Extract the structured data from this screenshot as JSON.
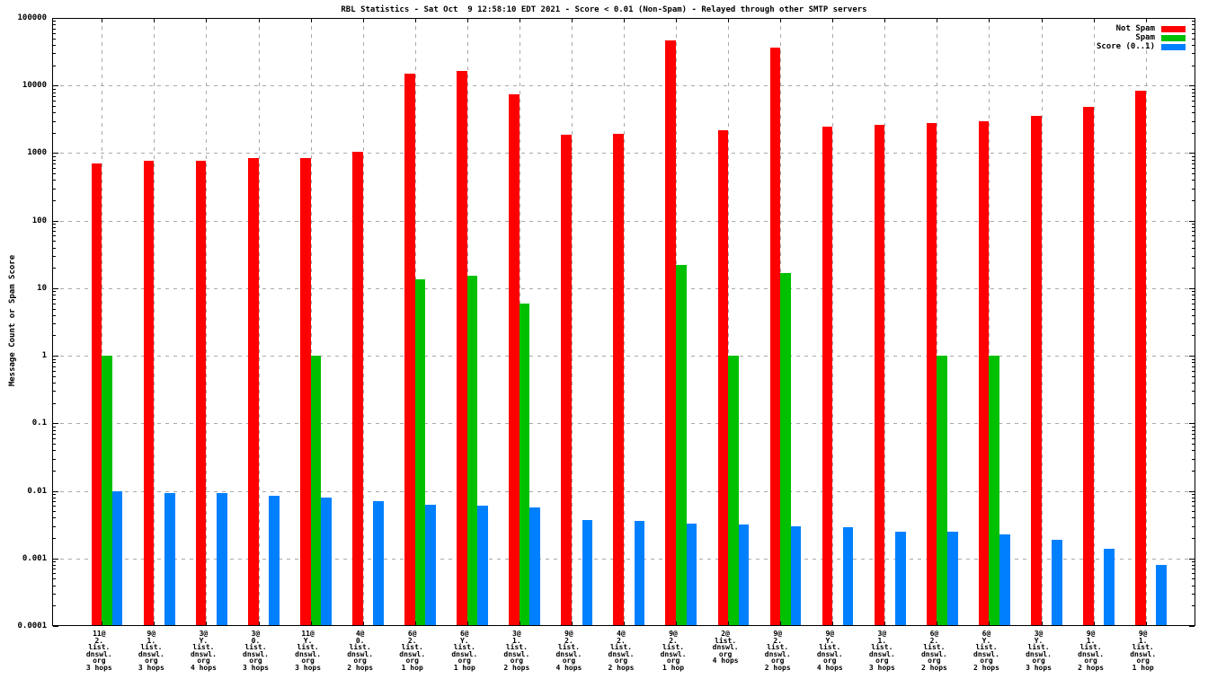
{
  "title": "RBL Statistics - Sat Oct  9 12:58:10 EDT 2021 - Score < 0.01 (Non-Spam) - Relayed through other SMTP servers",
  "ylabel": "Message Count or Spam Score",
  "colors": {
    "not_spam": "#ff0000",
    "spam": "#00c000",
    "score": "#0080ff",
    "grid": "#a8a8a8",
    "axis": "#000000",
    "background": "#ffffff"
  },
  "legend": {
    "position": "top-right",
    "items": [
      {
        "label": "Not Spam",
        "color": "#ff0000"
      },
      {
        "label": "Spam",
        "color": "#00c000"
      },
      {
        "label": "Score (0..1)",
        "color": "#0080ff"
      }
    ]
  },
  "chart_data": {
    "type": "bar",
    "title": "RBL Statistics - Sat Oct  9 12:58:10 EDT 2021 - Score < 0.01 (Non-Spam) - Relayed through other SMTP servers",
    "xlabel": "",
    "ylabel": "Message Count or Spam Score",
    "yscale": "log",
    "ylim": [
      0.0001,
      100000
    ],
    "ytick_labels": [
      "100000",
      "10000",
      "1000",
      "100",
      "10",
      "1",
      "0.1",
      "0.01",
      "0.001",
      "0.0001"
    ],
    "grid": true,
    "legend_position": "top-right",
    "categories": [
      [
        "11@",
        "2.",
        "list.",
        "dnswl.",
        "org",
        "3 hops"
      ],
      [
        "9@",
        "1.",
        "list.",
        "dnswl.",
        "org",
        "3 hops"
      ],
      [
        "3@",
        "Y.",
        "list.",
        "dnswl.",
        "org",
        "4 hops"
      ],
      [
        "3@",
        "0.",
        "list.",
        "dnswl.",
        "org",
        "3 hops"
      ],
      [
        "11@",
        "Y.",
        "list.",
        "dnswl.",
        "org",
        "3 hops"
      ],
      [
        "4@",
        "0.",
        "list.",
        "dnswl.",
        "org",
        "2 hops"
      ],
      [
        "6@",
        "2.",
        "list.",
        "dnswl.",
        "org",
        "1 hop"
      ],
      [
        "6@",
        "Y.",
        "list.",
        "dnswl.",
        "org",
        "1 hop"
      ],
      [
        "3@",
        "1.",
        "list.",
        "dnswl.",
        "org",
        "2 hops"
      ],
      [
        "9@",
        "2.",
        "list.",
        "dnswl.",
        "org",
        "4 hops"
      ],
      [
        "4@",
        "2.",
        "list.",
        "dnswl.",
        "org",
        "2 hops"
      ],
      [
        "9@",
        "2.",
        "list.",
        "dnswl.",
        "org",
        "1 hop"
      ],
      [
        "2@",
        "list.",
        "dnswl.",
        "org",
        "4 hops"
      ],
      [
        "9@",
        "2.",
        "list.",
        "dnswl.",
        "org",
        "2 hops"
      ],
      [
        "9@",
        "Y.",
        "list.",
        "dnswl.",
        "org",
        "4 hops"
      ],
      [
        "3@",
        "1.",
        "list.",
        "dnswl.",
        "org",
        "3 hops"
      ],
      [
        "6@",
        "2.",
        "list.",
        "dnswl.",
        "org",
        "2 hops"
      ],
      [
        "6@",
        "Y.",
        "list.",
        "dnswl.",
        "org",
        "2 hops"
      ],
      [
        "3@",
        "Y.",
        "list.",
        "dnswl.",
        "org",
        "3 hops"
      ],
      [
        "9@",
        "1.",
        "list.",
        "dnswl.",
        "org",
        "2 hops"
      ],
      [
        "9@",
        "1.",
        "list.",
        "dnswl.",
        "org",
        "1 hop"
      ]
    ],
    "series": [
      {
        "name": "Not Spam",
        "color": "#ff0000",
        "values": [
          700,
          760,
          770,
          855,
          845,
          1030,
          15000,
          16500,
          7400,
          1850,
          1900,
          46000,
          2150,
          36500,
          2450,
          2650,
          2750,
          3000,
          3600,
          4900,
          8500
        ]
      },
      {
        "name": "Spam",
        "color": "#00c000",
        "values": [
          1,
          null,
          null,
          null,
          1,
          null,
          13.5,
          15.5,
          6,
          null,
          null,
          22,
          1,
          17,
          null,
          null,
          1,
          1,
          null,
          null,
          null
        ]
      },
      {
        "name": "Score (0..1)",
        "color": "#0080ff",
        "values": [
          0.0098,
          0.0094,
          0.0094,
          0.0085,
          0.008,
          0.007,
          0.0062,
          0.0061,
          0.0056,
          0.0037,
          0.0036,
          0.0033,
          0.0032,
          0.003,
          0.0029,
          0.0025,
          0.0025,
          0.0023,
          0.0019,
          0.0014,
          0.0008
        ]
      }
    ]
  }
}
